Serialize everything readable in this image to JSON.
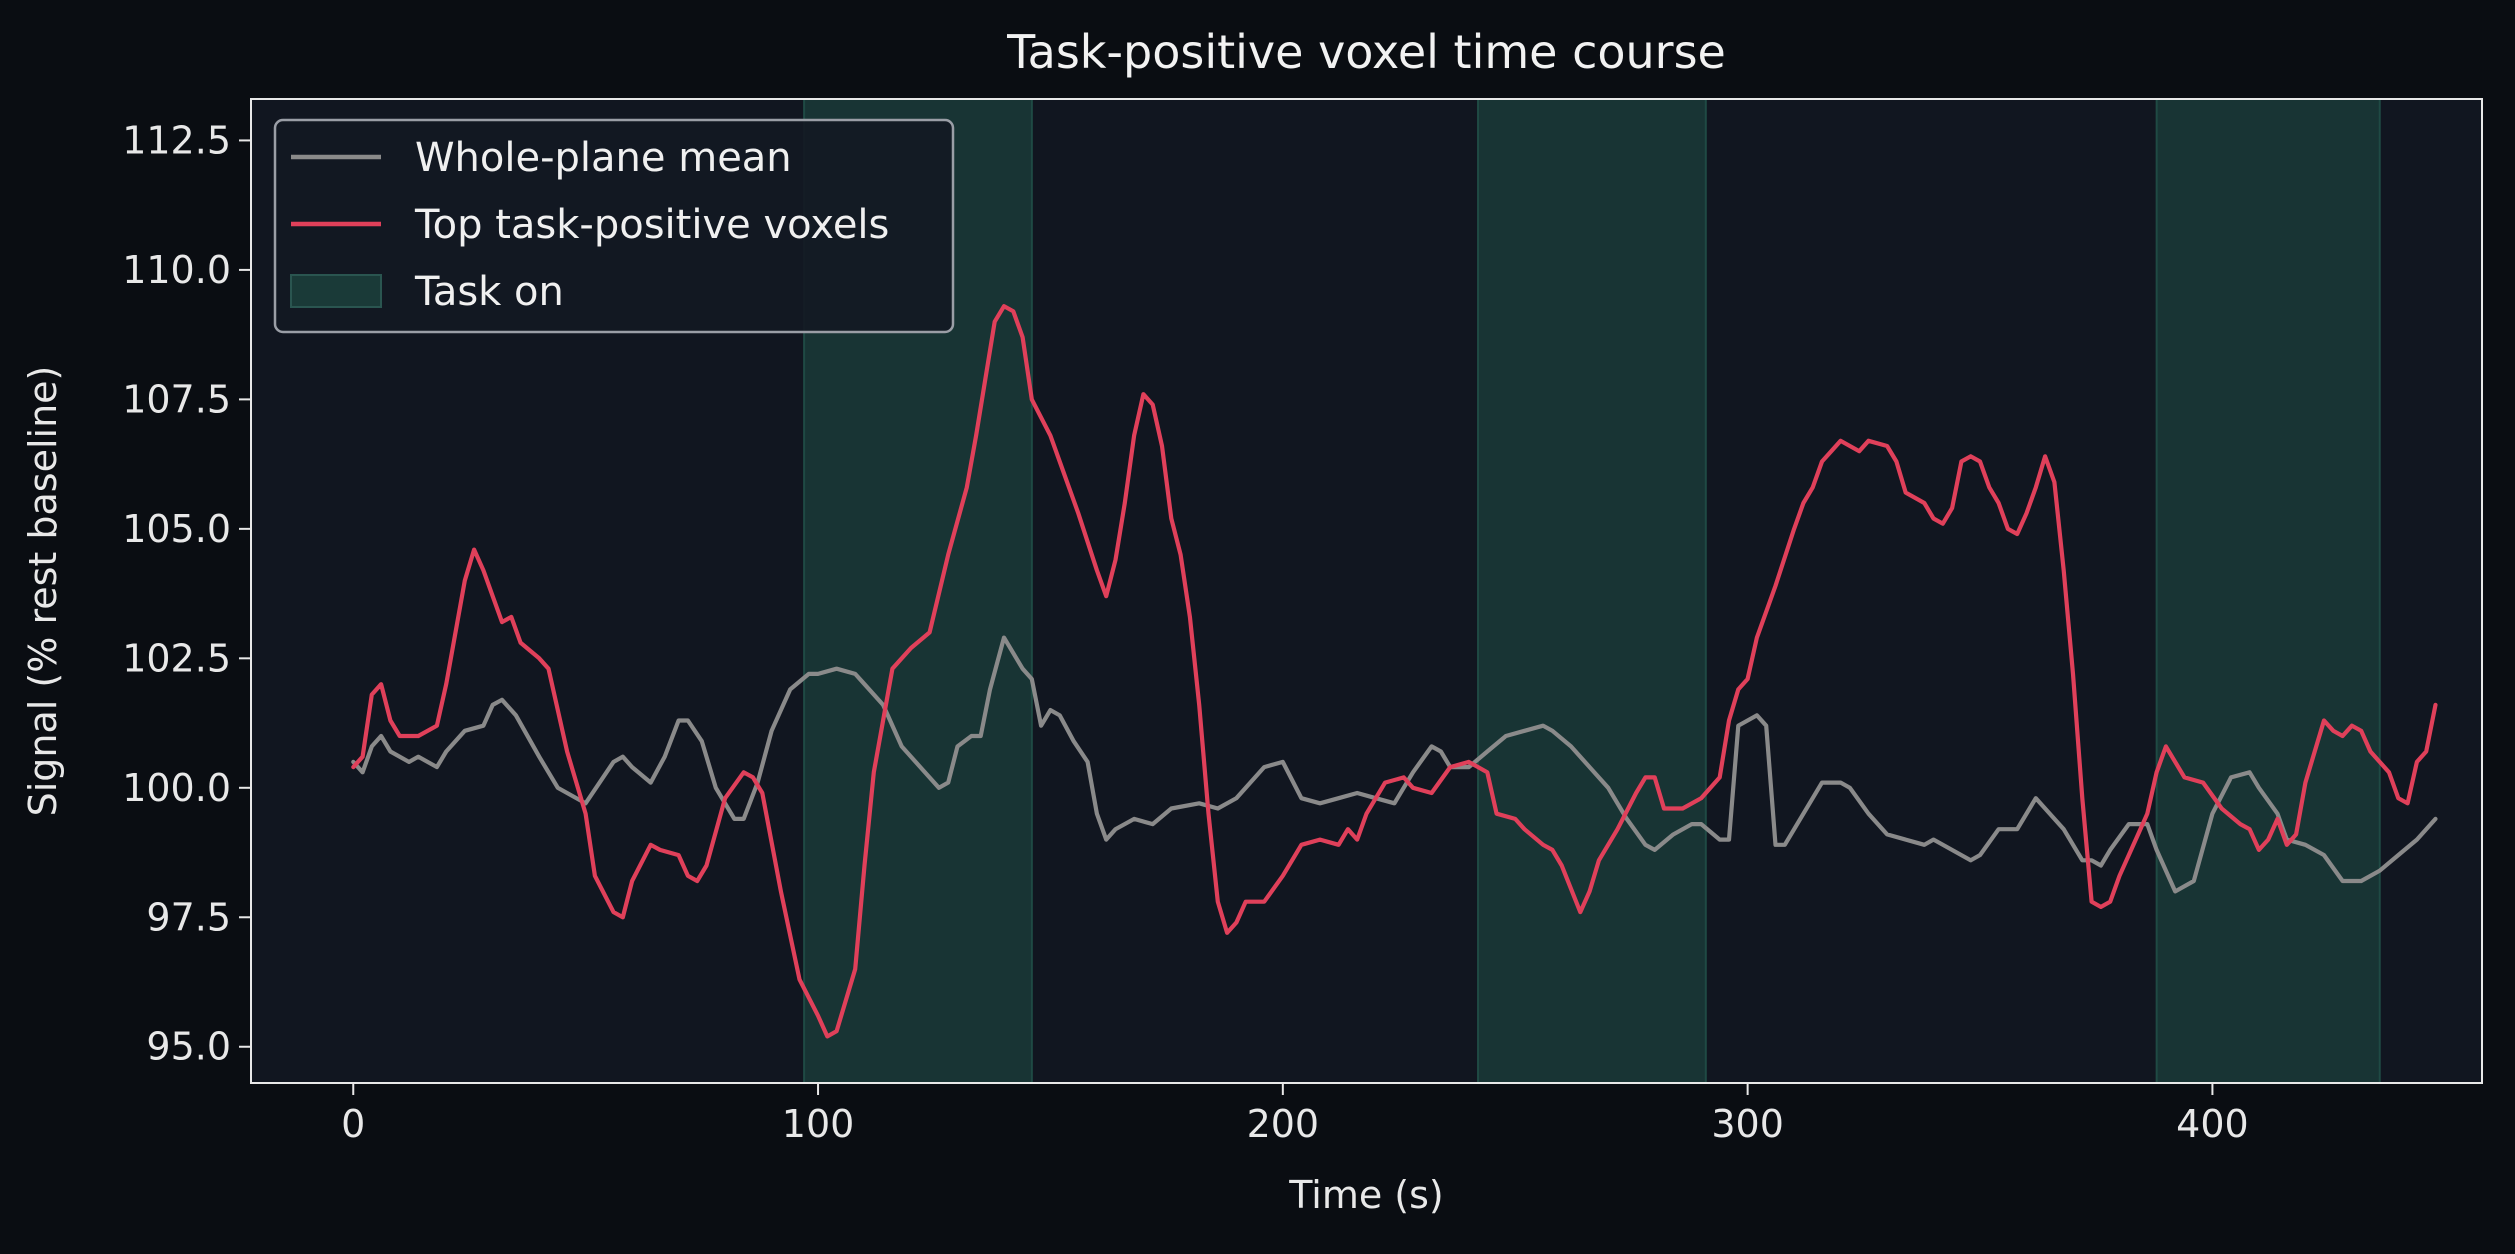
{
  "chart_data": {
    "type": "line",
    "title": "Task-positive voxel time course",
    "xlabel": "Time (s)",
    "ylabel": "Signal (% rest baseline)",
    "xlim": [
      -22,
      458
    ],
    "ylim": [
      94.3,
      113.3
    ],
    "x_ticks": [
      0,
      100,
      200,
      300,
      400
    ],
    "y_ticks": [
      95.0,
      97.5,
      100.0,
      102.5,
      105.0,
      107.5,
      110.0,
      112.5
    ],
    "y_tick_labels": [
      "95.0",
      "97.5",
      "100.0",
      "102.5",
      "105.0",
      "107.5",
      "110.0",
      "112.5"
    ],
    "task_blocks": [
      [
        97,
        146
      ],
      [
        242,
        291
      ],
      [
        388,
        436
      ]
    ],
    "legend": {
      "position": "upper-left",
      "entries": [
        {
          "label": "Whole-plane mean",
          "kind": "line",
          "color": "#8a8a8a"
        },
        {
          "label": "Top task-positive voxels",
          "kind": "line",
          "color": "#e0405a"
        },
        {
          "label": "Task on",
          "kind": "patch",
          "color": "#1a3a38"
        }
      ]
    },
    "series": [
      {
        "name": "Whole-plane mean",
        "color": "#8a8a8a",
        "points": [
          [
            0,
            100.5
          ],
          [
            2,
            100.3
          ],
          [
            4,
            100.8
          ],
          [
            6,
            101.0
          ],
          [
            8,
            100.7
          ],
          [
            12,
            100.5
          ],
          [
            14,
            100.6
          ],
          [
            18,
            100.4
          ],
          [
            20,
            100.7
          ],
          [
            24,
            101.1
          ],
          [
            28,
            101.2
          ],
          [
            30,
            101.6
          ],
          [
            32,
            101.7
          ],
          [
            35,
            101.4
          ],
          [
            40,
            100.6
          ],
          [
            44,
            100.0
          ],
          [
            48,
            99.8
          ],
          [
            50,
            99.7
          ],
          [
            53,
            100.1
          ],
          [
            56,
            100.5
          ],
          [
            58,
            100.6
          ],
          [
            60,
            100.4
          ],
          [
            64,
            100.1
          ],
          [
            67,
            100.6
          ],
          [
            70,
            101.3
          ],
          [
            72,
            101.3
          ],
          [
            75,
            100.9
          ],
          [
            78,
            100.0
          ],
          [
            82,
            99.4
          ],
          [
            84,
            99.4
          ],
          [
            87,
            100.1
          ],
          [
            90,
            101.1
          ],
          [
            94,
            101.9
          ],
          [
            98,
            102.2
          ],
          [
            100,
            102.2
          ],
          [
            104,
            102.3
          ],
          [
            108,
            102.2
          ],
          [
            110,
            102.0
          ],
          [
            114,
            101.6
          ],
          [
            118,
            100.8
          ],
          [
            122,
            100.4
          ],
          [
            126,
            100.0
          ],
          [
            128,
            100.1
          ],
          [
            130,
            100.8
          ],
          [
            133,
            101.0
          ],
          [
            135,
            101.0
          ],
          [
            137,
            101.9
          ],
          [
            140,
            102.9
          ],
          [
            144,
            102.3
          ],
          [
            146,
            102.1
          ],
          [
            148,
            101.2
          ],
          [
            150,
            101.5
          ],
          [
            152,
            101.4
          ],
          [
            155,
            100.9
          ],
          [
            158,
            100.5
          ],
          [
            160,
            99.5
          ],
          [
            162,
            99.0
          ],
          [
            164,
            99.2
          ],
          [
            168,
            99.4
          ],
          [
            172,
            99.3
          ],
          [
            176,
            99.6
          ],
          [
            182,
            99.7
          ],
          [
            186,
            99.6
          ],
          [
            190,
            99.8
          ],
          [
            196,
            100.4
          ],
          [
            200,
            100.5
          ],
          [
            204,
            99.8
          ],
          [
            208,
            99.7
          ],
          [
            212,
            99.8
          ],
          [
            216,
            99.9
          ],
          [
            220,
            99.8
          ],
          [
            224,
            99.7
          ],
          [
            228,
            100.3
          ],
          [
            232,
            100.8
          ],
          [
            234,
            100.7
          ],
          [
            236,
            100.4
          ],
          [
            240,
            100.4
          ],
          [
            244,
            100.7
          ],
          [
            248,
            101.0
          ],
          [
            252,
            101.1
          ],
          [
            256,
            101.2
          ],
          [
            258,
            101.1
          ],
          [
            262,
            100.8
          ],
          [
            266,
            100.4
          ],
          [
            270,
            100.0
          ],
          [
            274,
            99.4
          ],
          [
            278,
            98.9
          ],
          [
            280,
            98.8
          ],
          [
            284,
            99.1
          ],
          [
            288,
            99.3
          ],
          [
            290,
            99.3
          ],
          [
            294,
            99.0
          ],
          [
            296,
            99.0
          ],
          [
            298,
            101.2
          ],
          [
            302,
            101.4
          ],
          [
            304,
            101.2
          ],
          [
            306,
            98.9
          ],
          [
            308,
            98.9
          ],
          [
            312,
            99.5
          ],
          [
            316,
            100.1
          ],
          [
            320,
            100.1
          ],
          [
            322,
            100.0
          ],
          [
            326,
            99.5
          ],
          [
            330,
            99.1
          ],
          [
            334,
            99.0
          ],
          [
            338,
            98.9
          ],
          [
            340,
            99.0
          ],
          [
            344,
            98.8
          ],
          [
            348,
            98.6
          ],
          [
            350,
            98.7
          ],
          [
            354,
            99.2
          ],
          [
            358,
            99.2
          ],
          [
            362,
            99.8
          ],
          [
            364,
            99.6
          ],
          [
            368,
            99.2
          ],
          [
            372,
            98.6
          ],
          [
            374,
            98.6
          ],
          [
            376,
            98.5
          ],
          [
            378,
            98.8
          ],
          [
            382,
            99.3
          ],
          [
            386,
            99.3
          ],
          [
            388,
            98.8
          ],
          [
            392,
            98.0
          ],
          [
            396,
            98.2
          ],
          [
            400,
            99.5
          ],
          [
            404,
            100.2
          ],
          [
            408,
            100.3
          ],
          [
            410,
            100.0
          ],
          [
            414,
            99.5
          ],
          [
            416,
            99.0
          ],
          [
            420,
            98.9
          ],
          [
            424,
            98.7
          ],
          [
            428,
            98.2
          ],
          [
            432,
            98.2
          ],
          [
            436,
            98.4
          ],
          [
            440,
            98.7
          ],
          [
            444,
            99.0
          ],
          [
            448,
            99.4
          ]
        ]
      },
      {
        "name": "Top task-positive voxels",
        "color": "#e0405a",
        "points": [
          [
            0,
            100.4
          ],
          [
            2,
            100.6
          ],
          [
            4,
            101.8
          ],
          [
            6,
            102.0
          ],
          [
            8,
            101.3
          ],
          [
            10,
            101.0
          ],
          [
            14,
            101.0
          ],
          [
            18,
            101.2
          ],
          [
            20,
            102.0
          ],
          [
            24,
            104.0
          ],
          [
            26,
            104.6
          ],
          [
            28,
            104.2
          ],
          [
            30,
            103.7
          ],
          [
            32,
            103.2
          ],
          [
            34,
            103.3
          ],
          [
            36,
            102.8
          ],
          [
            40,
            102.5
          ],
          [
            42,
            102.3
          ],
          [
            46,
            100.7
          ],
          [
            50,
            99.5
          ],
          [
            52,
            98.3
          ],
          [
            56,
            97.6
          ],
          [
            58,
            97.5
          ],
          [
            60,
            98.2
          ],
          [
            64,
            98.9
          ],
          [
            66,
            98.8
          ],
          [
            70,
            98.7
          ],
          [
            72,
            98.3
          ],
          [
            74,
            98.2
          ],
          [
            76,
            98.5
          ],
          [
            80,
            99.8
          ],
          [
            84,
            100.3
          ],
          [
            86,
            100.2
          ],
          [
            88,
            99.9
          ],
          [
            92,
            98.0
          ],
          [
            96,
            96.3
          ],
          [
            100,
            95.6
          ],
          [
            102,
            95.2
          ],
          [
            104,
            95.3
          ],
          [
            108,
            96.5
          ],
          [
            110,
            98.5
          ],
          [
            112,
            100.3
          ],
          [
            116,
            102.3
          ],
          [
            120,
            102.7
          ],
          [
            124,
            103.0
          ],
          [
            128,
            104.5
          ],
          [
            132,
            105.8
          ],
          [
            134,
            106.8
          ],
          [
            136,
            107.9
          ],
          [
            138,
            109.0
          ],
          [
            140,
            109.3
          ],
          [
            142,
            109.2
          ],
          [
            144,
            108.7
          ],
          [
            146,
            107.5
          ],
          [
            150,
            106.8
          ],
          [
            152,
            106.3
          ],
          [
            154,
            105.8
          ],
          [
            156,
            105.3
          ],
          [
            160,
            104.2
          ],
          [
            162,
            103.7
          ],
          [
            164,
            104.4
          ],
          [
            166,
            105.5
          ],
          [
            168,
            106.8
          ],
          [
            170,
            107.6
          ],
          [
            172,
            107.4
          ],
          [
            174,
            106.6
          ],
          [
            176,
            105.2
          ],
          [
            178,
            104.5
          ],
          [
            180,
            103.3
          ],
          [
            182,
            101.6
          ],
          [
            184,
            99.5
          ],
          [
            186,
            97.8
          ],
          [
            188,
            97.2
          ],
          [
            190,
            97.4
          ],
          [
            192,
            97.8
          ],
          [
            196,
            97.8
          ],
          [
            200,
            98.3
          ],
          [
            204,
            98.9
          ],
          [
            208,
            99.0
          ],
          [
            212,
            98.9
          ],
          [
            214,
            99.2
          ],
          [
            216,
            99.0
          ],
          [
            218,
            99.5
          ],
          [
            222,
            100.1
          ],
          [
            226,
            100.2
          ],
          [
            228,
            100.0
          ],
          [
            232,
            99.9
          ],
          [
            236,
            100.4
          ],
          [
            240,
            100.5
          ],
          [
            244,
            100.3
          ],
          [
            246,
            99.5
          ],
          [
            250,
            99.4
          ],
          [
            252,
            99.2
          ],
          [
            256,
            98.9
          ],
          [
            258,
            98.8
          ],
          [
            260,
            98.5
          ],
          [
            264,
            97.6
          ],
          [
            266,
            98.0
          ],
          [
            268,
            98.6
          ],
          [
            272,
            99.2
          ],
          [
            276,
            99.9
          ],
          [
            278,
            100.2
          ],
          [
            280,
            100.2
          ],
          [
            282,
            99.6
          ],
          [
            286,
            99.6
          ],
          [
            290,
            99.8
          ],
          [
            294,
            100.2
          ],
          [
            296,
            101.3
          ],
          [
            298,
            101.9
          ],
          [
            300,
            102.1
          ],
          [
            302,
            102.9
          ],
          [
            306,
            103.9
          ],
          [
            310,
            105.0
          ],
          [
            312,
            105.5
          ],
          [
            314,
            105.8
          ],
          [
            316,
            106.3
          ],
          [
            318,
            106.5
          ],
          [
            320,
            106.7
          ],
          [
            324,
            106.5
          ],
          [
            326,
            106.7
          ],
          [
            330,
            106.6
          ],
          [
            332,
            106.3
          ],
          [
            334,
            105.7
          ],
          [
            338,
            105.5
          ],
          [
            340,
            105.2
          ],
          [
            342,
            105.1
          ],
          [
            344,
            105.4
          ],
          [
            346,
            106.3
          ],
          [
            348,
            106.4
          ],
          [
            350,
            106.3
          ],
          [
            352,
            105.8
          ],
          [
            354,
            105.5
          ],
          [
            356,
            105.0
          ],
          [
            358,
            104.9
          ],
          [
            360,
            105.3
          ],
          [
            362,
            105.8
          ],
          [
            364,
            106.4
          ],
          [
            366,
            105.9
          ],
          [
            368,
            104.2
          ],
          [
            370,
            102.2
          ],
          [
            372,
            99.8
          ],
          [
            374,
            97.8
          ],
          [
            376,
            97.7
          ],
          [
            378,
            97.8
          ],
          [
            380,
            98.3
          ],
          [
            384,
            99.1
          ],
          [
            386,
            99.5
          ],
          [
            388,
            100.3
          ],
          [
            390,
            100.8
          ],
          [
            392,
            100.5
          ],
          [
            394,
            100.2
          ],
          [
            398,
            100.1
          ],
          [
            402,
            99.6
          ],
          [
            406,
            99.3
          ],
          [
            408,
            99.2
          ],
          [
            410,
            98.8
          ],
          [
            412,
            99.0
          ],
          [
            414,
            99.4
          ],
          [
            416,
            98.9
          ],
          [
            418,
            99.1
          ],
          [
            420,
            100.1
          ],
          [
            424,
            101.3
          ],
          [
            426,
            101.1
          ],
          [
            428,
            101.0
          ],
          [
            430,
            101.2
          ],
          [
            432,
            101.1
          ],
          [
            434,
            100.7
          ],
          [
            436,
            100.5
          ],
          [
            438,
            100.3
          ],
          [
            440,
            99.8
          ],
          [
            442,
            99.7
          ],
          [
            444,
            100.5
          ],
          [
            446,
            100.7
          ],
          [
            448,
            101.6
          ]
        ]
      }
    ]
  }
}
